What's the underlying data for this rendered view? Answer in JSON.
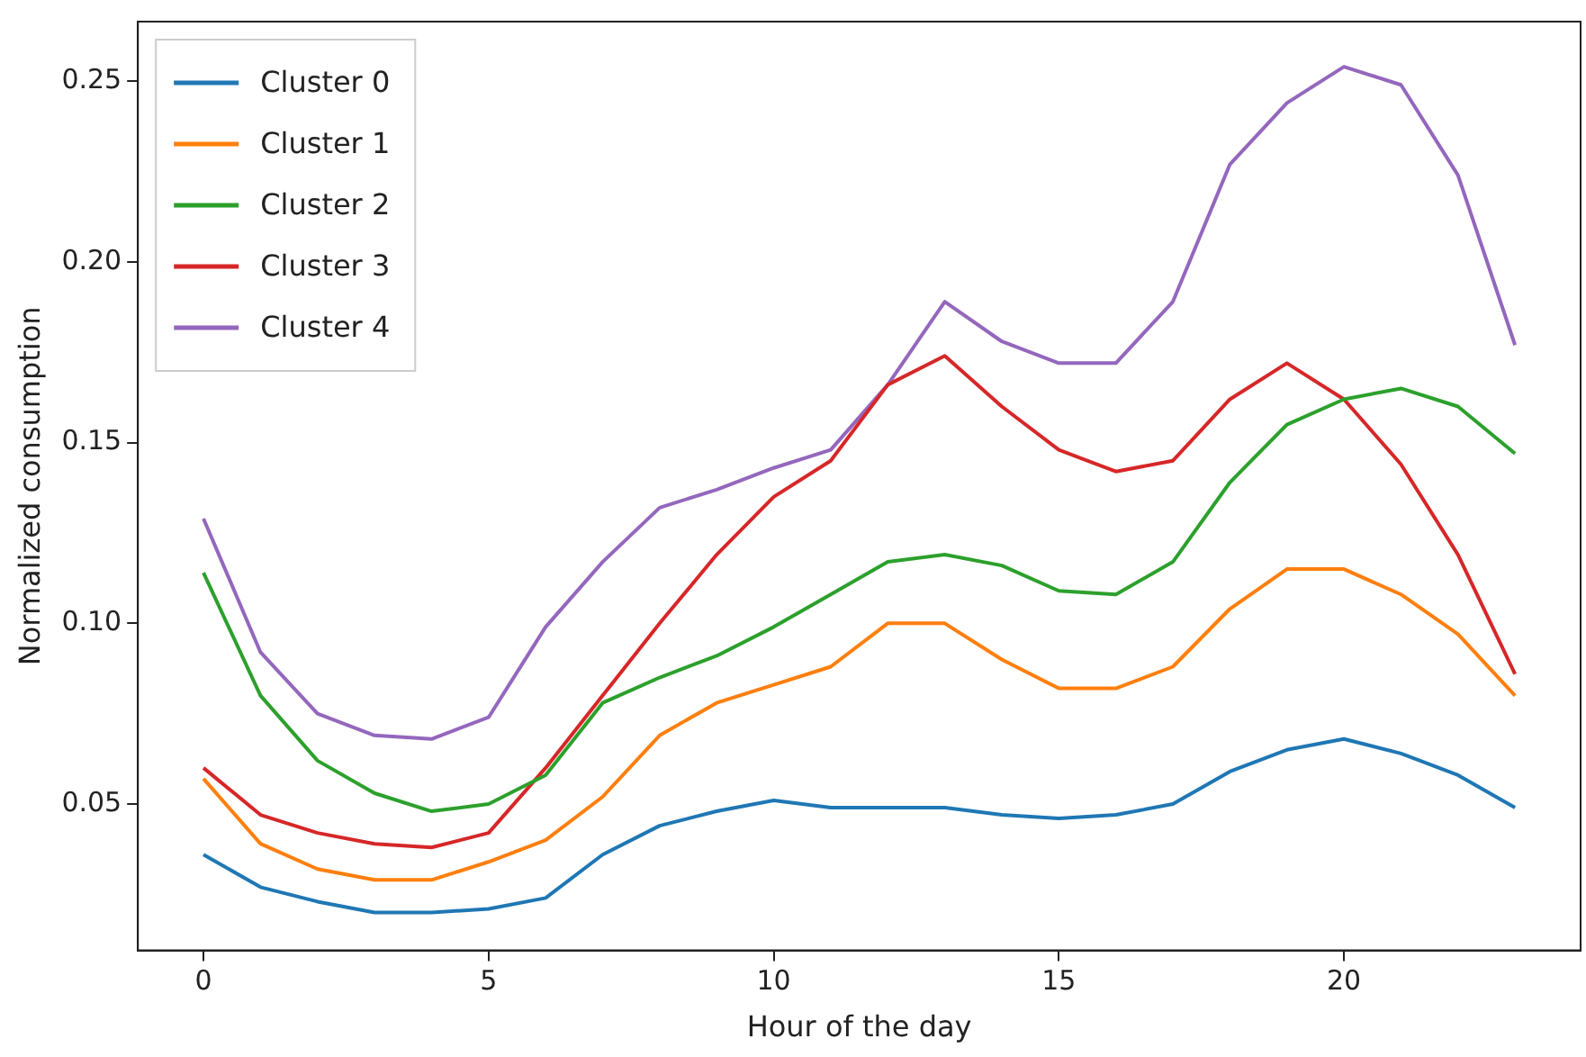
{
  "chart_data": {
    "type": "line",
    "xlabel": "Hour of the day",
    "ylabel": "Normalized consumption",
    "x": [
      0,
      1,
      2,
      3,
      4,
      5,
      6,
      7,
      8,
      9,
      10,
      11,
      12,
      13,
      14,
      15,
      16,
      17,
      18,
      19,
      20,
      21,
      22,
      23
    ],
    "xlim": [
      -1.15,
      24.15
    ],
    "xticks": [
      0,
      5,
      10,
      15,
      20
    ],
    "ylim": [
      0.0095,
      0.2665
    ],
    "yticks": [
      {
        "value": 0.05,
        "label": "0.05"
      },
      {
        "value": 0.1,
        "label": "0.10"
      },
      {
        "value": 0.15,
        "label": "0.15"
      },
      {
        "value": 0.2,
        "label": "0.20"
      },
      {
        "value": 0.25,
        "label": "0.25"
      }
    ],
    "legend": "top left",
    "grid": false,
    "marker": "none",
    "line_style": "solid",
    "series": [
      {
        "name": "Cluster 0",
        "color": "#1f77b4",
        "values": [
          0.036,
          0.027,
          0.023,
          0.02,
          0.02,
          0.021,
          0.024,
          0.036,
          0.044,
          0.048,
          0.051,
          0.049,
          0.049,
          0.049,
          0.047,
          0.046,
          0.047,
          0.05,
          0.059,
          0.065,
          0.068,
          0.064,
          0.058,
          0.049
        ]
      },
      {
        "name": "Cluster 1",
        "color": "#ff7f0e",
        "values": [
          0.057,
          0.039,
          0.032,
          0.029,
          0.029,
          0.034,
          0.04,
          0.052,
          0.069,
          0.078,
          0.083,
          0.088,
          0.1,
          0.1,
          0.09,
          0.082,
          0.082,
          0.088,
          0.104,
          0.115,
          0.115,
          0.108,
          0.097,
          0.08
        ]
      },
      {
        "name": "Cluster 2",
        "color": "#2ca02c",
        "values": [
          0.114,
          0.08,
          0.062,
          0.053,
          0.048,
          0.05,
          0.058,
          0.078,
          0.085,
          0.091,
          0.099,
          0.108,
          0.117,
          0.119,
          0.116,
          0.109,
          0.108,
          0.117,
          0.139,
          0.155,
          0.162,
          0.165,
          0.16,
          0.147
        ]
      },
      {
        "name": "Cluster 3",
        "color": "#d62728",
        "values": [
          0.06,
          0.047,
          0.042,
          0.039,
          0.038,
          0.042,
          0.06,
          0.08,
          0.1,
          0.119,
          0.135,
          0.145,
          0.166,
          0.174,
          0.16,
          0.148,
          0.142,
          0.145,
          0.162,
          0.172,
          0.162,
          0.144,
          0.119,
          0.086
        ]
      },
      {
        "name": "Cluster 4",
        "color": "#9467bd",
        "values": [
          0.129,
          0.092,
          0.075,
          0.069,
          0.068,
          0.074,
          0.099,
          0.117,
          0.132,
          0.137,
          0.143,
          0.148,
          0.166,
          0.189,
          0.178,
          0.172,
          0.172,
          0.189,
          0.227,
          0.244,
          0.254,
          0.249,
          0.224,
          0.177
        ]
      }
    ]
  }
}
